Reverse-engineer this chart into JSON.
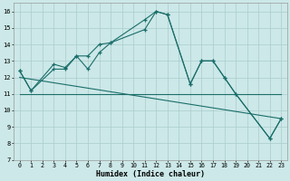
{
  "xlabel": "Humidex (Indice chaleur)",
  "xlim": [
    -0.5,
    23.5
  ],
  "ylim": [
    7,
    16.5
  ],
  "yticks": [
    7,
    8,
    9,
    10,
    11,
    12,
    13,
    14,
    15,
    16
  ],
  "xticks": [
    0,
    1,
    2,
    3,
    4,
    5,
    6,
    7,
    8,
    9,
    10,
    11,
    12,
    13,
    14,
    15,
    16,
    17,
    18,
    19,
    20,
    21,
    22,
    23
  ],
  "bg_color": "#cce8e8",
  "grid_color": "#aacccc",
  "line_color": "#1a6e6a",
  "series": [
    {
      "x": [
        0,
        1,
        3,
        4,
        5,
        6,
        7,
        8,
        11,
        12,
        13,
        15,
        16,
        17,
        18,
        19,
        22,
        23
      ],
      "y": [
        12.4,
        11.2,
        12.5,
        12.5,
        13.3,
        13.3,
        14.0,
        14.1,
        15.5,
        16.0,
        15.8,
        11.6,
        13.0,
        13.0,
        12.0,
        11.0,
        8.3,
        9.5
      ],
      "marker": true
    },
    {
      "x": [
        0,
        1,
        3,
        4,
        5,
        6,
        7,
        8,
        11,
        12,
        13,
        15,
        16,
        17,
        18,
        19,
        22,
        23
      ],
      "y": [
        12.4,
        11.2,
        12.8,
        12.6,
        13.3,
        12.5,
        13.5,
        14.1,
        14.9,
        16.0,
        15.8,
        11.6,
        13.0,
        13.0,
        12.0,
        11.0,
        8.3,
        9.5
      ],
      "marker": true
    },
    {
      "x": [
        0,
        23
      ],
      "y": [
        11.0,
        11.0
      ],
      "marker": false
    },
    {
      "x": [
        0,
        23
      ],
      "y": [
        12.0,
        9.5
      ],
      "marker": false
    }
  ]
}
